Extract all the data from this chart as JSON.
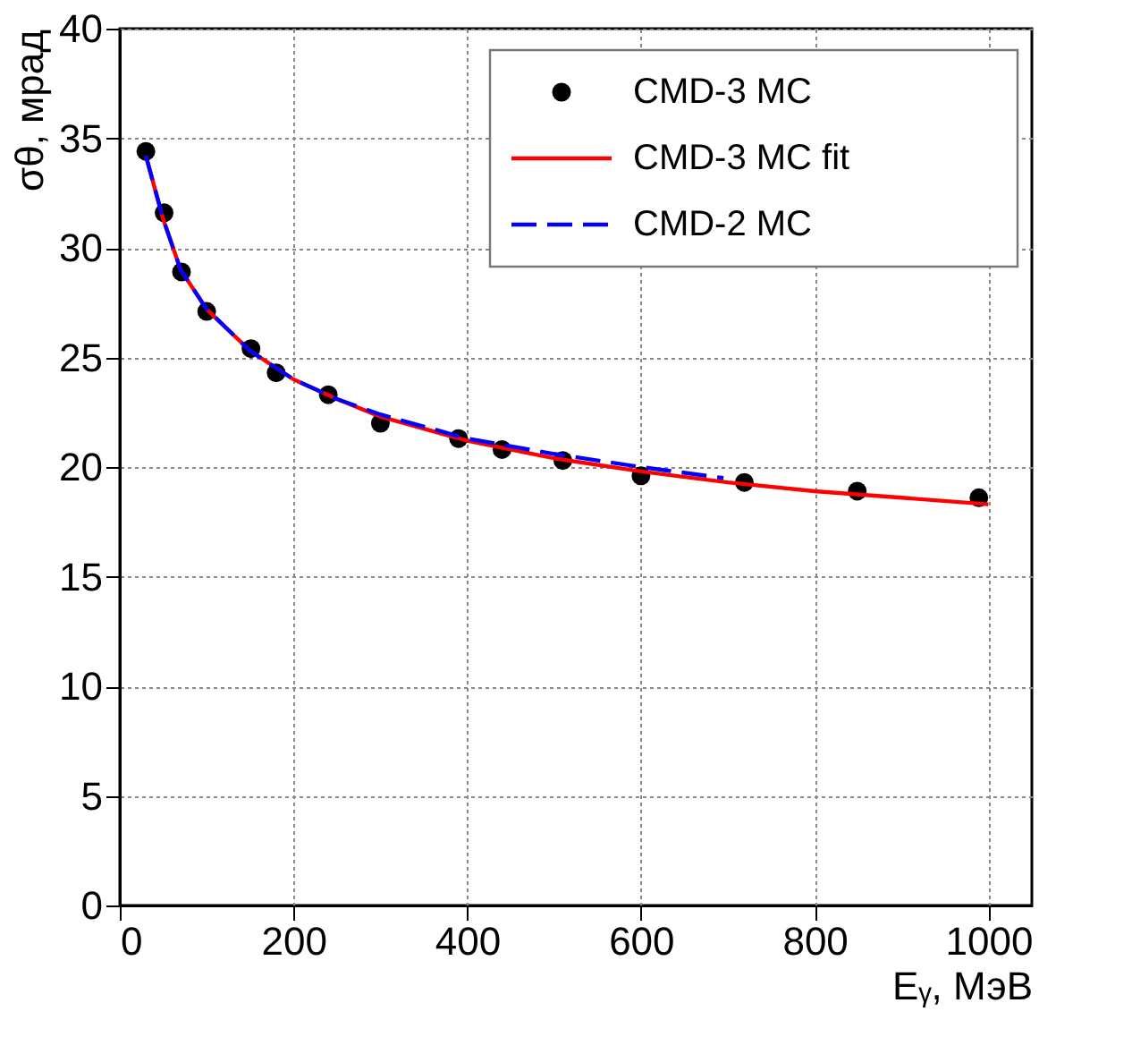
{
  "chart_data": {
    "type": "line",
    "xlabel": "Eᵧ, МэВ",
    "ylabel": "σθ, мрад",
    "xlim": [
      0,
      1050
    ],
    "ylim": [
      0,
      40
    ],
    "xticks": [
      0,
      200,
      400,
      600,
      800,
      1000
    ],
    "yticks": [
      0,
      5,
      10,
      15,
      20,
      25,
      30,
      35,
      40
    ],
    "grid": true,
    "legend": "top right",
    "series": [
      {
        "name": "CMD-3 MC",
        "type": "scatter",
        "marker": "circle",
        "color": "#000000",
        "x": [
          30,
          51,
          71,
          100,
          151,
          180,
          240,
          300,
          390,
          440,
          510,
          600,
          719,
          849,
          989
        ],
        "values": [
          34.4,
          31.6,
          28.9,
          27.1,
          25.4,
          24.3,
          23.3,
          22.0,
          21.3,
          20.8,
          20.3,
          19.6,
          19.3,
          18.9,
          18.6
        ]
      },
      {
        "name": "CMD-3 MC fit",
        "line_style": "solid",
        "color": "#ff0000",
        "x": [
          30,
          50,
          70,
          100,
          150,
          200,
          250,
          300,
          400,
          500,
          600,
          700,
          800,
          900,
          1000
        ],
        "values": [
          34.2,
          31.3,
          29.0,
          27.2,
          25.3,
          24.0,
          23.1,
          22.3,
          21.2,
          20.4,
          19.8,
          19.3,
          18.9,
          18.6,
          18.3
        ]
      },
      {
        "name": "CMD-2 MC",
        "line_style": "dashed",
        "color": "#0000ff",
        "x": [
          30,
          50,
          70,
          100,
          150,
          200,
          250,
          300,
          400,
          500,
          600,
          695
        ],
        "values": [
          34.2,
          31.3,
          29.0,
          27.2,
          25.3,
          24.0,
          23.1,
          22.4,
          21.3,
          20.6,
          20.0,
          19.5
        ]
      }
    ]
  }
}
